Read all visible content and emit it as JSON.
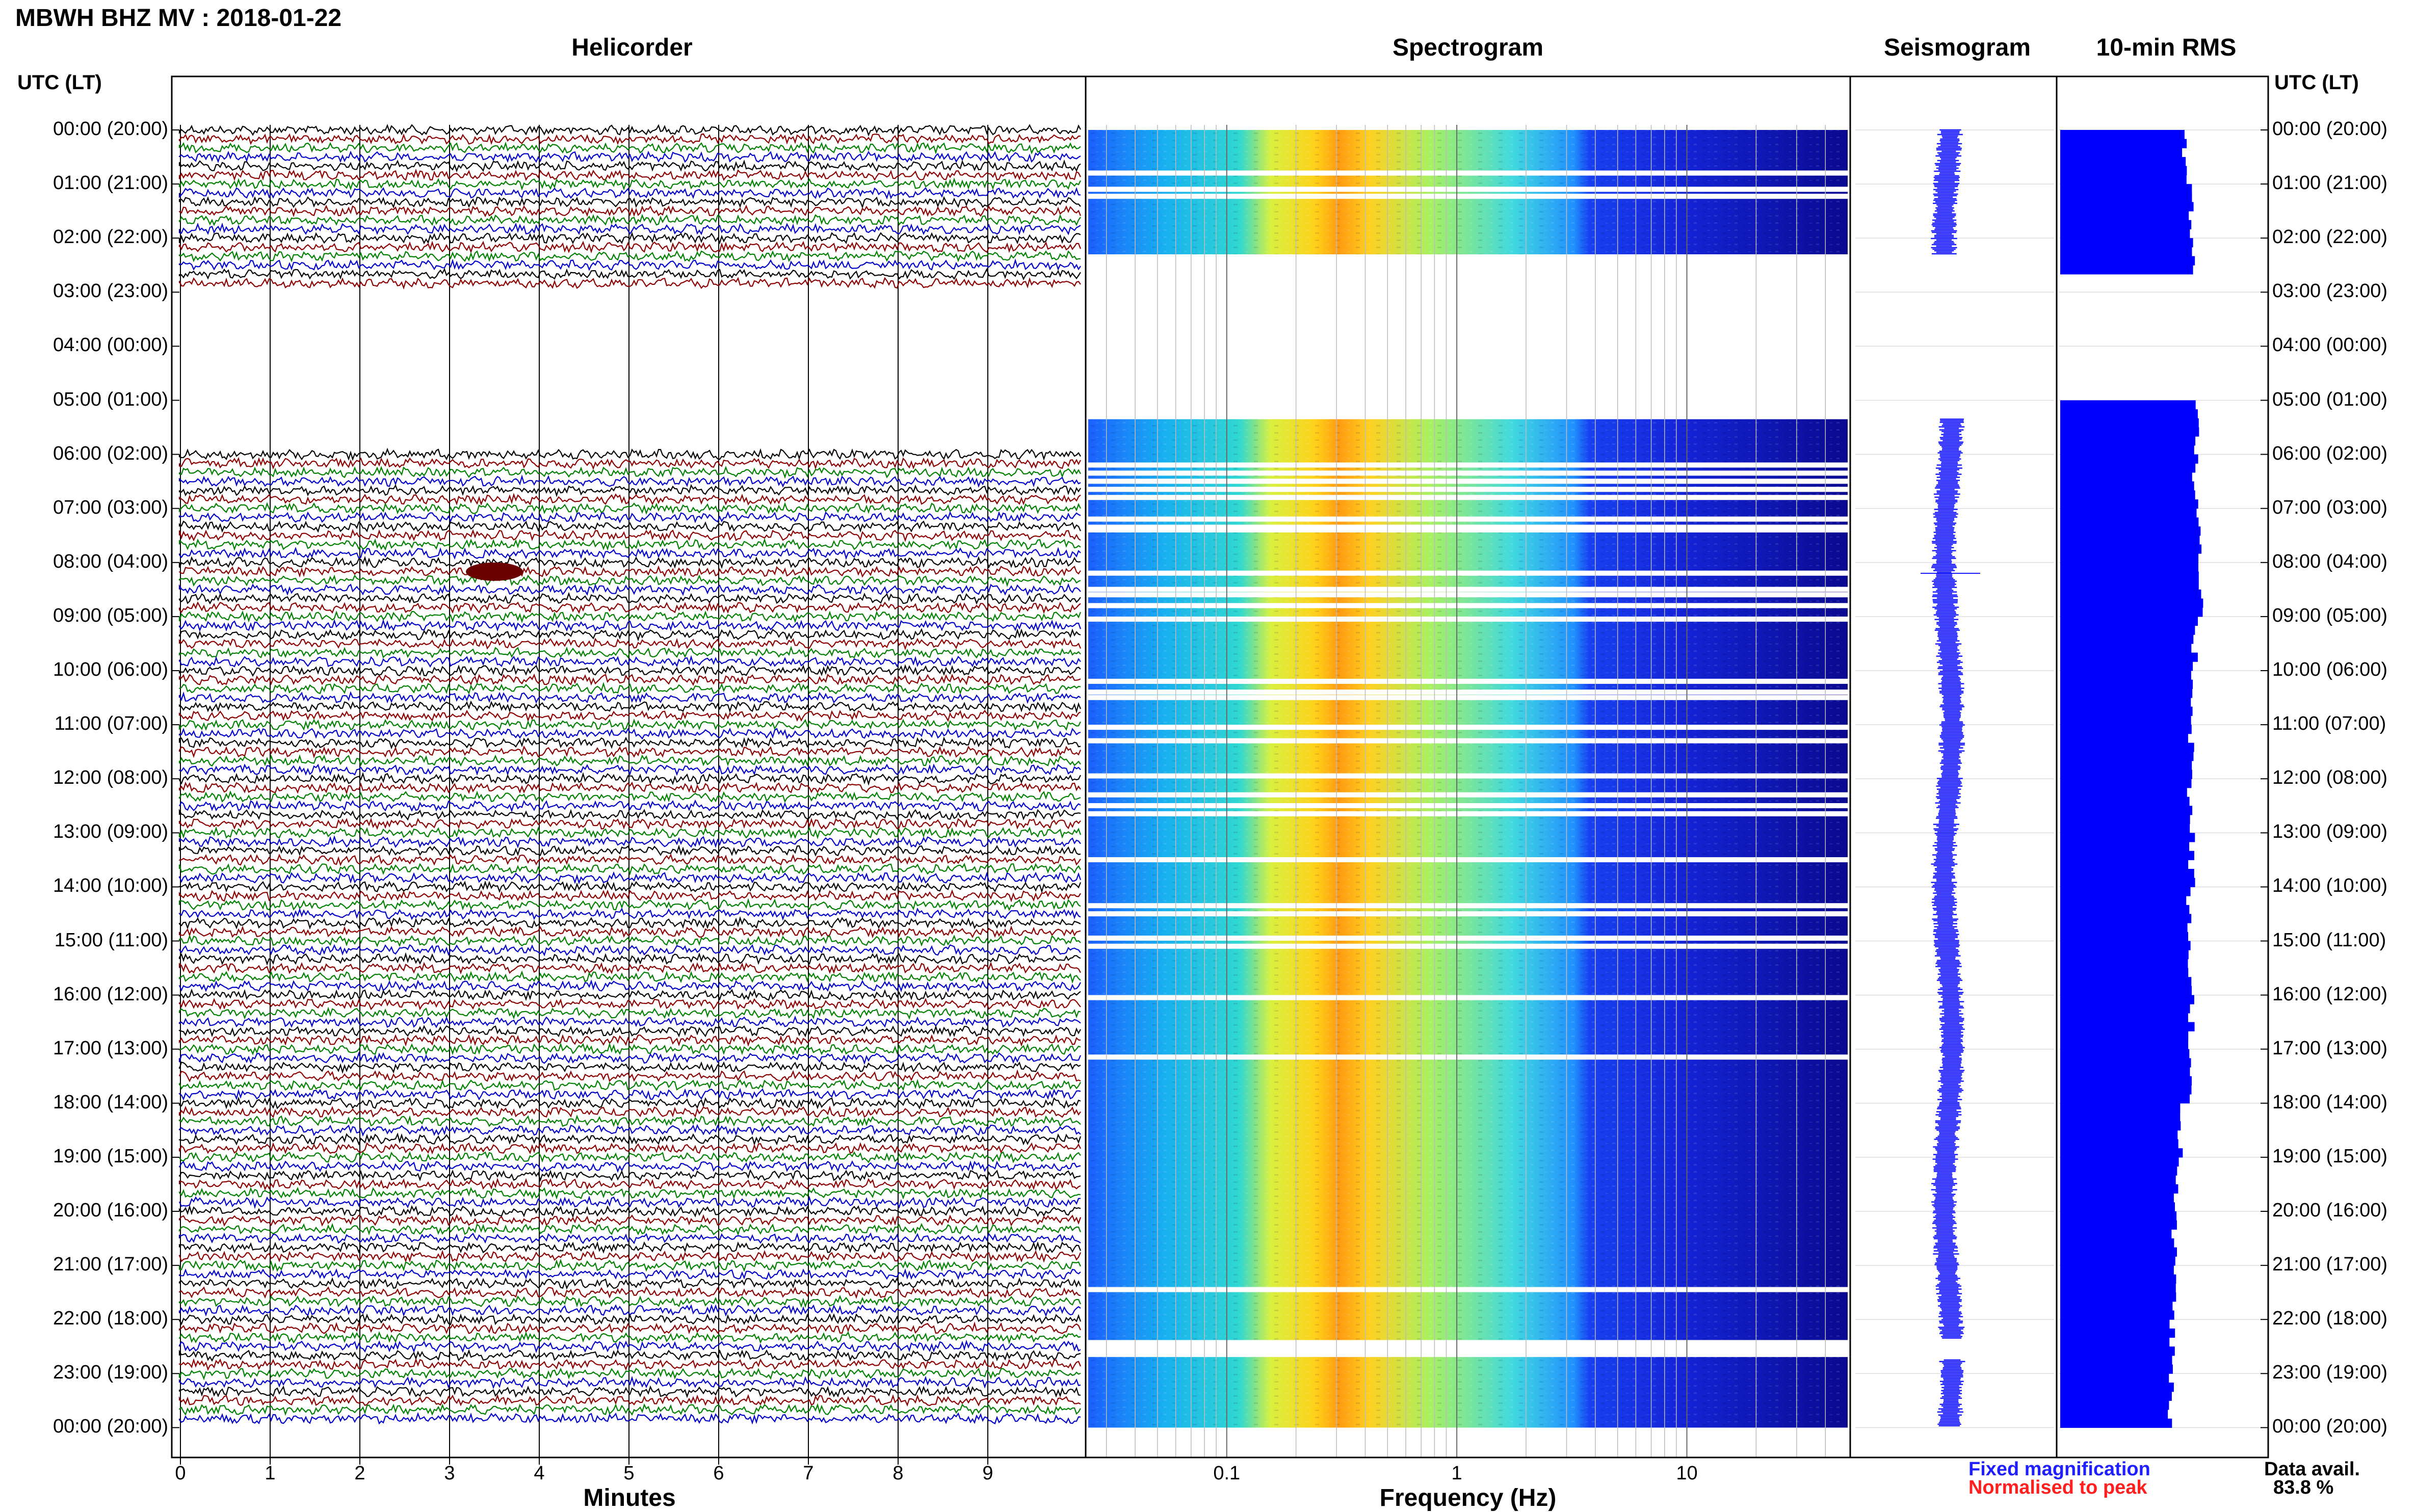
{
  "header": {
    "title": "MBWH BHZ MV : 2018-01-22"
  },
  "panels": {
    "helicorder_title": "Helicorder",
    "spectrogram_title": "Spectrogram",
    "seismogram_title": "Seismogram",
    "rms_title": "10-min RMS"
  },
  "axes": {
    "utc_label_left": "UTC (LT)",
    "utc_label_right": "UTC (LT)",
    "hour_labels": [
      "00:00 (20:00)",
      "01:00 (21:00)",
      "02:00 (22:00)",
      "03:00 (23:00)",
      "04:00 (00:00)",
      "05:00 (01:00)",
      "06:00 (02:00)",
      "07:00 (03:00)",
      "08:00 (04:00)",
      "09:00 (05:00)",
      "10:00 (06:00)",
      "11:00 (07:00)",
      "12:00 (08:00)",
      "13:00 (09:00)",
      "14:00 (10:00)",
      "15:00 (11:00)",
      "16:00 (12:00)",
      "17:00 (13:00)",
      "18:00 (14:00)",
      "19:00 (15:00)",
      "20:00 (16:00)",
      "21:00 (17:00)",
      "22:00 (18:00)",
      "23:00 (19:00)",
      "00:00 (20:00)"
    ],
    "minutes_ticks": [
      "0",
      "1",
      "2",
      "3",
      "4",
      "5",
      "6",
      "7",
      "8",
      "9"
    ],
    "minutes_label": "Minutes",
    "frequency_ticks": [
      "0.1",
      "1",
      "10"
    ],
    "frequency_label": "Frequency (Hz)"
  },
  "legend": {
    "fixed": "Fixed magnification",
    "normalised": "Normalised to peak",
    "data_avail_label": "Data avail.",
    "data_avail_value": "83.8 %"
  },
  "chart_data": [
    {
      "type": "line",
      "panel": "Helicorder",
      "xlabel": "Minutes",
      "xlim": [
        0,
        10
      ],
      "trace_colors": [
        "#000000",
        "#8b0000",
        "#008000",
        "#0000c8"
      ],
      "data_gap_hours": [
        3,
        4,
        5
      ],
      "event_marker": {
        "hour": 8,
        "minute": 3.5
      }
    },
    {
      "type": "heatmap",
      "panel": "Spectrogram",
      "xlabel": "Frequency (Hz)",
      "xscale": "log",
      "xlim": [
        0.025,
        50
      ],
      "peak_band_hz": [
        0.15,
        0.5
      ],
      "colors": [
        "#1b1bff",
        "#14a0ff",
        "#30e0c0",
        "#ffe010",
        "#ff7000",
        "#0a0a90"
      ],
      "data_gap_hours": [
        3,
        4,
        5
      ]
    },
    {
      "type": "line",
      "panel": "Seismogram",
      "color": "#1a1aff",
      "data_gap_hours": [
        3,
        4,
        5
      ]
    },
    {
      "type": "bar",
      "panel": "10-min RMS",
      "color": "#0000ff",
      "hours": [
        0,
        1,
        2,
        3,
        4,
        5,
        6,
        7,
        8,
        9,
        10,
        11,
        12,
        13,
        14,
        15,
        16,
        17,
        18,
        19,
        20,
        21,
        22,
        23
      ],
      "values": [
        0.82,
        0.86,
        0.88,
        null,
        null,
        0.9,
        0.88,
        0.9,
        0.91,
        0.88,
        0.87,
        0.86,
        0.85,
        0.86,
        0.84,
        0.85,
        0.86,
        0.84,
        0.78,
        0.76,
        0.74,
        0.75,
        0.73,
        0.72
      ],
      "ylim": [
        0,
        1
      ]
    }
  ]
}
